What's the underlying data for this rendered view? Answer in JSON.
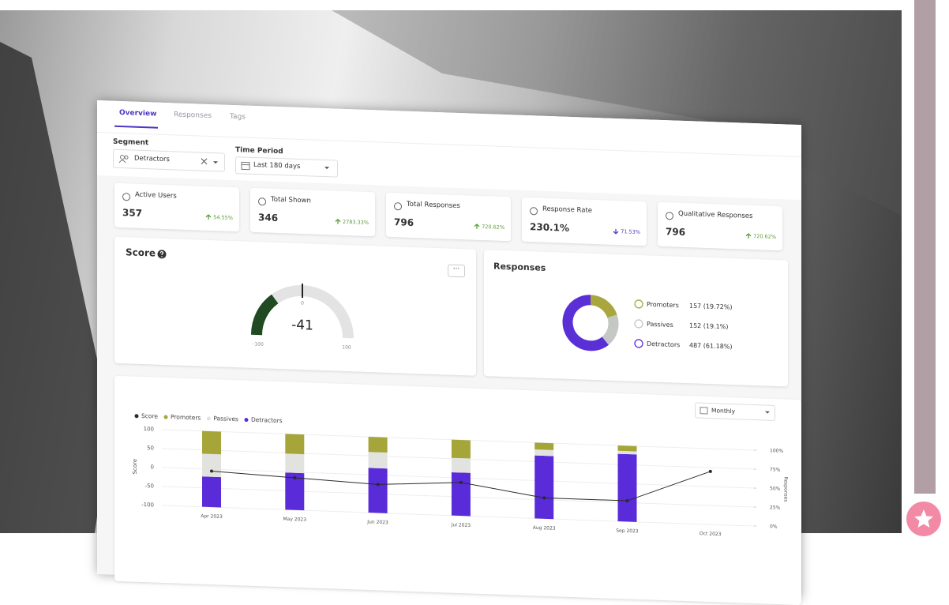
{
  "tabs": [
    "Overview",
    "Responses",
    "Tags"
  ],
  "filters": {
    "segment_label": "Segment",
    "segment_value": "Detractors",
    "period_label": "Time Period",
    "period_value": "Last 180 days"
  },
  "kpis": [
    {
      "label": "Active Users",
      "value": "357",
      "change": "54.55%",
      "direction": "up"
    },
    {
      "label": "Total Shown",
      "value": "346",
      "change": "2783.33%",
      "direction": "up"
    },
    {
      "label": "Total Responses",
      "value": "796",
      "change": "720.62%",
      "direction": "up"
    },
    {
      "label": "Response Rate",
      "value": "230.1%",
      "change": "71.53%",
      "direction": "down"
    },
    {
      "label": "Qualitative Responses",
      "value": "796",
      "change": "720.62%",
      "direction": "up"
    }
  ],
  "score_card": {
    "title": "Score",
    "value": -41,
    "min": -100,
    "max": 100,
    "ticks": [
      -100,
      0,
      100
    ],
    "color": "#1f4a22"
  },
  "responses_card": {
    "type": "pie",
    "title": "Responses",
    "categories": [
      "Promoters",
      "Passives",
      "Detractors"
    ],
    "values": [
      157,
      152,
      487
    ],
    "value_labels": [
      "157 (19.72%)",
      "152 (19.1%)",
      "487 (61.18%)"
    ],
    "colors": [
      "#a8a63c",
      "#c4c7c3",
      "#5b2fd6"
    ]
  },
  "interval": "Monthly",
  "chart_data": {
    "type": "bar",
    "ylabel": "Score",
    "y2label": "Responses",
    "categories": [
      "Apr 2023",
      "May 2023",
      "Jun 2023",
      "Jul 2023",
      "Aug 2023",
      "Sep 2023",
      "Oct 2023"
    ],
    "series": [
      {
        "name": "Score",
        "type": "line",
        "color": "#2a2a2a",
        "axis": "y",
        "values": [
          -5,
          -15,
          -25,
          -12,
          -45,
          -45,
          40
        ]
      },
      {
        "name": "Promoters",
        "type": "bar",
        "color": "#a5a53a",
        "axis": "y2",
        "values": [
          30,
          26,
          20,
          24,
          9,
          7,
          null
        ]
      },
      {
        "name": "Passives",
        "type": "bar",
        "color": "#e2e3df",
        "axis": "y2",
        "values": [
          30,
          25,
          21,
          19,
          8,
          4,
          null
        ]
      },
      {
        "name": "Detractors",
        "type": "bar",
        "color": "#5a2bd8",
        "axis": "y2",
        "values": [
          40,
          49,
          59,
          57,
          83,
          89,
          null
        ]
      }
    ],
    "ylim": [
      -100,
      100
    ],
    "yticks": [
      -100,
      -50,
      0,
      50,
      100
    ],
    "y2lim": [
      0,
      100
    ],
    "y2ticks": [
      {
        "value": 0,
        "label": "0%"
      },
      {
        "value": 25,
        "label": "25%"
      },
      {
        "value": 50,
        "label": "50%"
      },
      {
        "value": 75,
        "label": "75%"
      },
      {
        "value": 100,
        "label": "100%"
      }
    ],
    "grid": true
  }
}
